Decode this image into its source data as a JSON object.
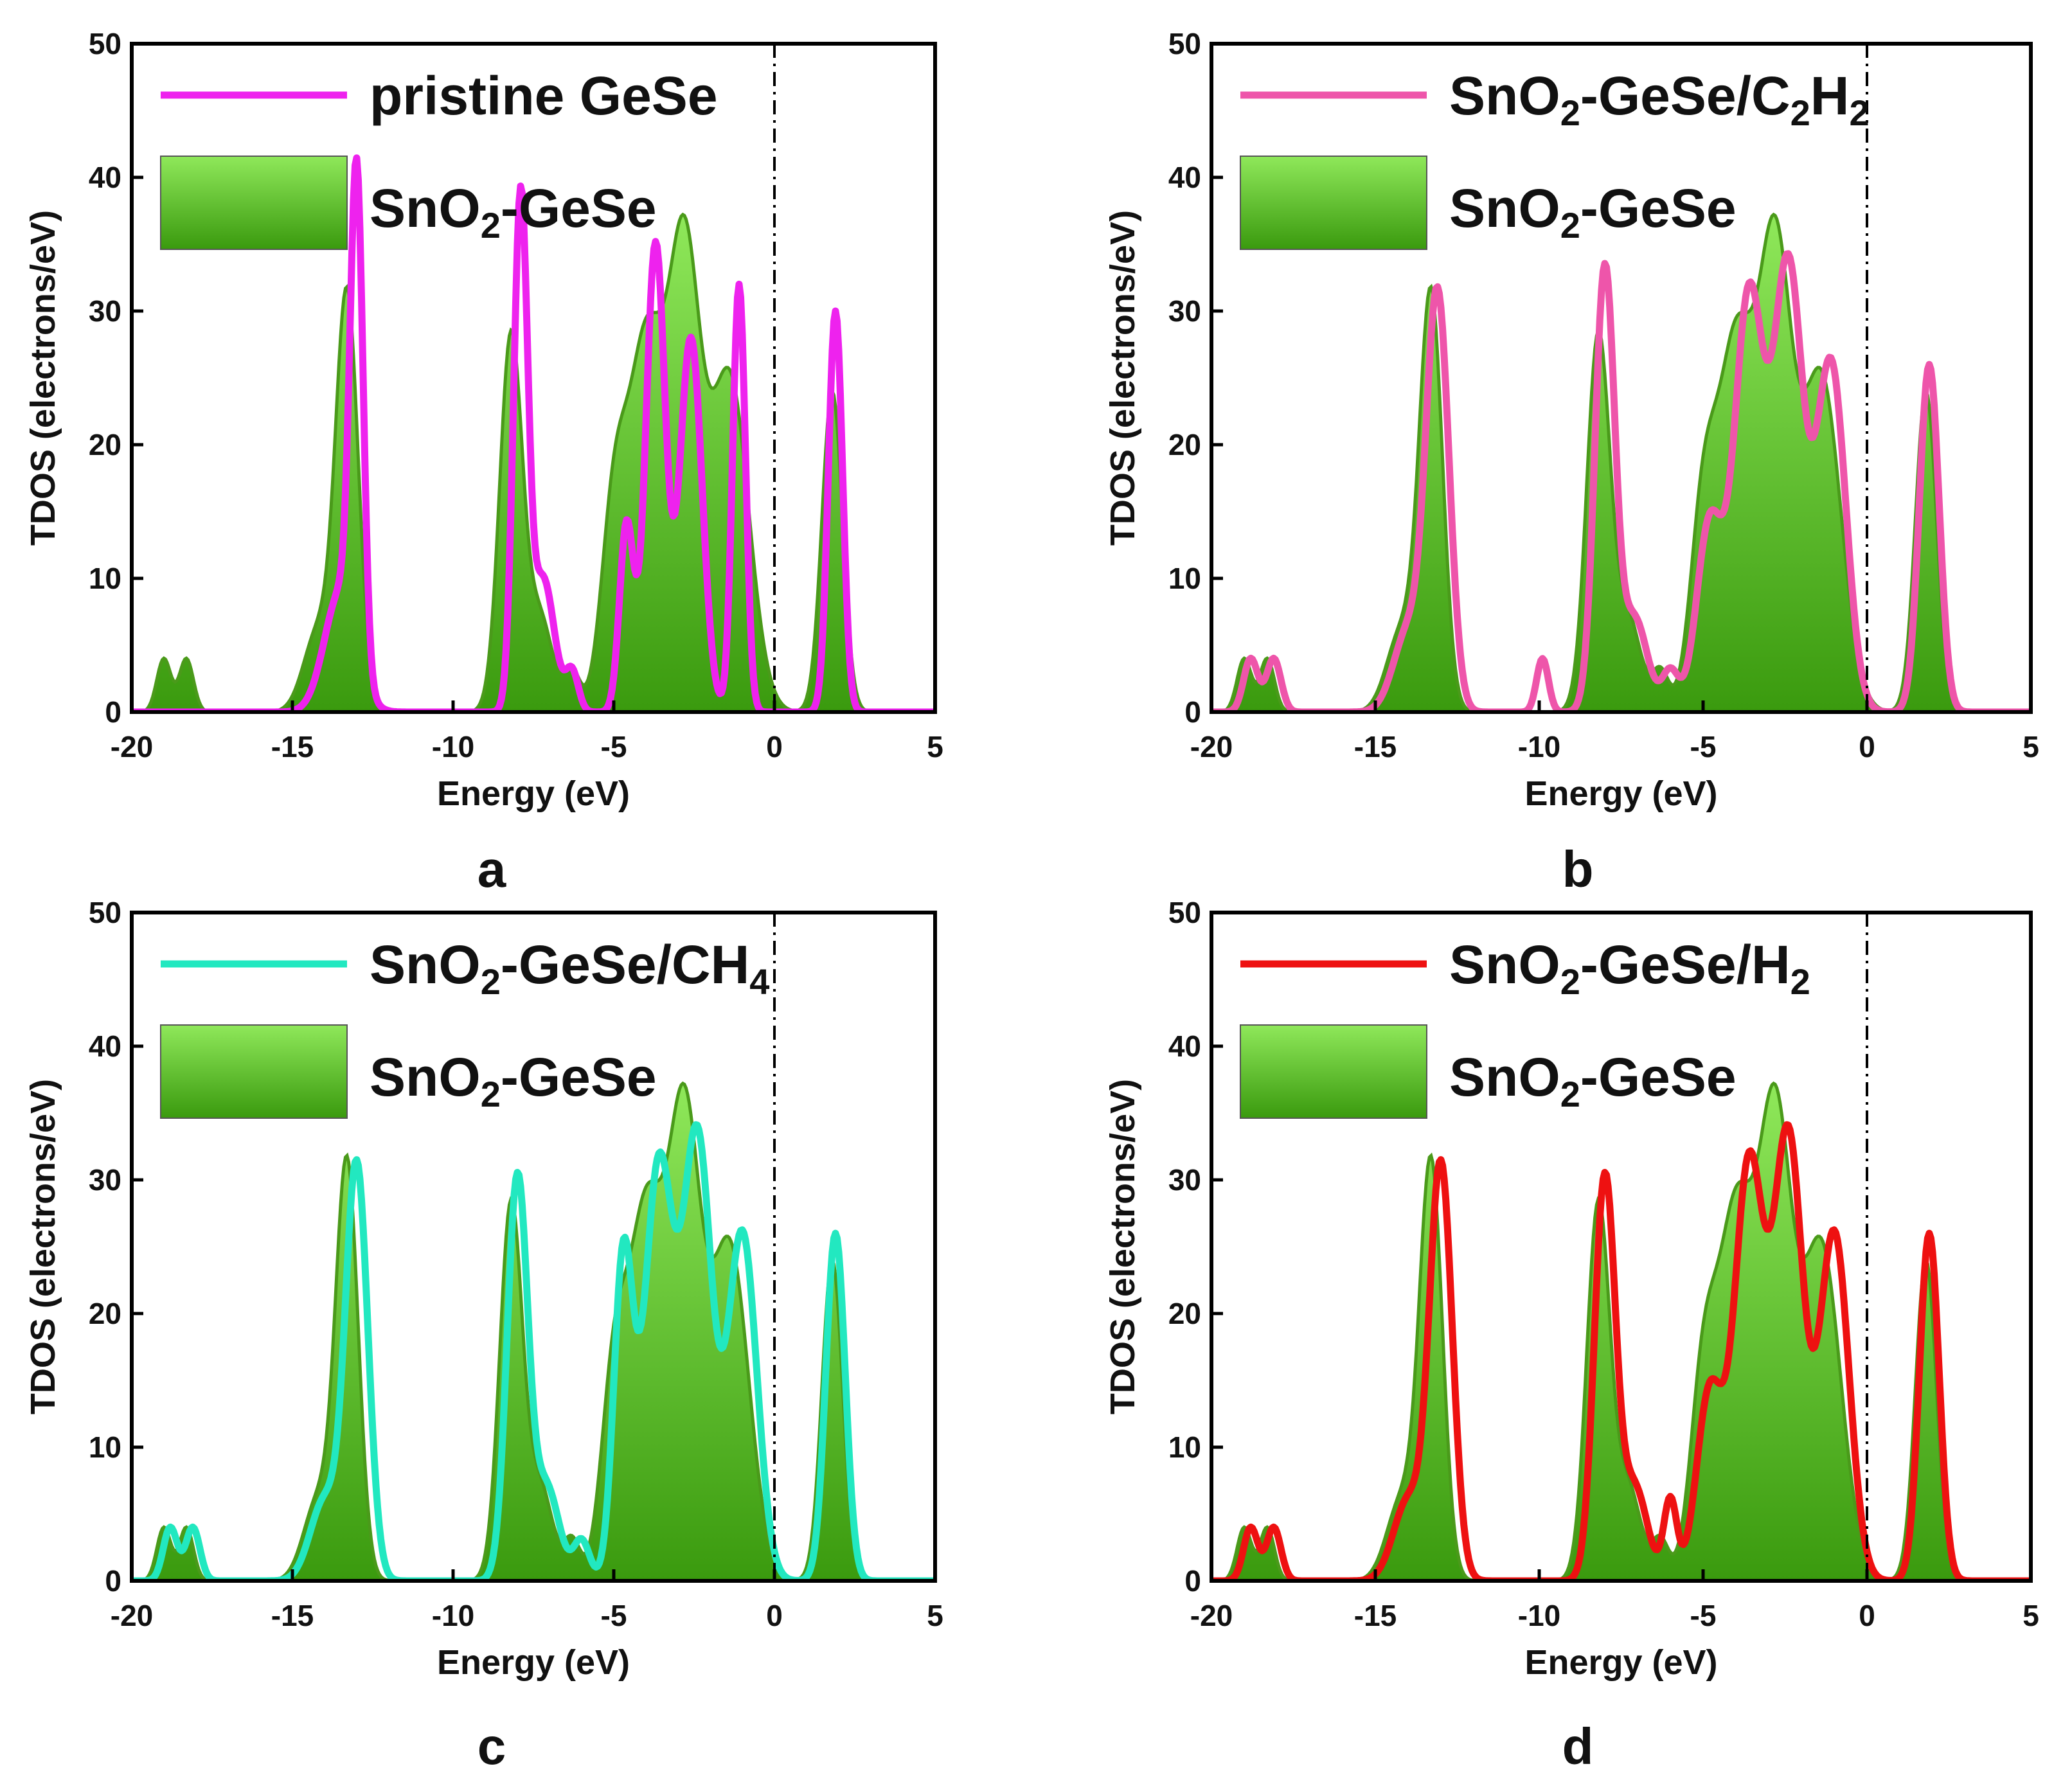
{
  "colors": {
    "fill_top": "#8fe85a",
    "fill_bottom": "#3a9a0e",
    "fill_stroke": "#4a9a1a",
    "axis": "#000000"
  },
  "chart_data": [
    {
      "type": "area",
      "panel_label": "a",
      "xlabel": "Energy (eV)",
      "ylabel": "TDOS (electrons/eV)",
      "xlim": [
        -20,
        5
      ],
      "ylim": [
        0,
        50
      ],
      "xticks": [
        -20,
        -15,
        -10,
        -5,
        0,
        5
      ],
      "yticks": [
        0,
        10,
        20,
        30,
        40,
        50
      ],
      "xtick_labels": [
        "-20",
        "-15",
        "-10",
        "-5",
        "0",
        "5"
      ],
      "ytick_labels": [
        "0",
        "10",
        "20",
        "30",
        "40",
        "50"
      ],
      "fermi_level": 0,
      "series": [
        {
          "name": "SnO₂-GeSe",
          "legend_parts": [
            [
              "SnO",
              false
            ],
            [
              "2",
              true
            ],
            [
              "-GeSe",
              false
            ]
          ],
          "style": "fill",
          "color": "#3a9a0e",
          "peaks": [
            [
              -19.0,
              4,
              0.22
            ],
            [
              -18.3,
              4,
              0.22
            ],
            [
              -14.2,
              6,
              0.45
            ],
            [
              -13.3,
              31,
              0.35
            ],
            [
              -8.2,
              28,
              0.35
            ],
            [
              -7.3,
              7,
              0.4
            ],
            [
              -6.3,
              3,
              0.25
            ],
            [
              -5.0,
              14,
              0.4
            ],
            [
              -4.0,
              27,
              0.55
            ],
            [
              -2.8,
              33,
              0.5
            ],
            [
              -1.4,
              25,
              0.6
            ],
            [
              1.8,
              24,
              0.32
            ]
          ]
        },
        {
          "name": "pristine GeSe",
          "legend_parts": [
            [
              "pristine GeSe",
              false
            ]
          ],
          "style": "line",
          "color": "#ee22ee",
          "peaks": [
            [
              -13.5,
              9,
              0.5
            ],
            [
              -13.0,
              36,
              0.2
            ],
            [
              -7.9,
              38,
              0.22
            ],
            [
              -7.2,
              10,
              0.35
            ],
            [
              -6.3,
              3,
              0.2
            ],
            [
              -4.6,
              14,
              0.22
            ],
            [
              -3.7,
              35,
              0.3
            ],
            [
              -2.6,
              28,
              0.35
            ],
            [
              -1.1,
              32,
              0.2
            ],
            [
              1.9,
              30,
              0.22
            ]
          ]
        }
      ]
    },
    {
      "type": "area",
      "panel_label": "b",
      "xlabel": "Energy (eV)",
      "ylabel": "TDOS (electrons/eV)",
      "xlim": [
        -20,
        5
      ],
      "ylim": [
        0,
        50
      ],
      "xticks": [
        -20,
        -15,
        -10,
        -5,
        0,
        5
      ],
      "yticks": [
        0,
        10,
        20,
        30,
        40,
        50
      ],
      "xtick_labels": [
        "-20",
        "-15",
        "-10",
        "-5",
        "0",
        "5"
      ],
      "ytick_labels": [
        "0",
        "10",
        "20",
        "30",
        "40",
        "50"
      ],
      "fermi_level": 0,
      "series": [
        {
          "name": "SnO₂-GeSe",
          "legend_parts": [
            [
              "SnO",
              false
            ],
            [
              "2",
              true
            ],
            [
              "-GeSe",
              false
            ]
          ],
          "style": "fill",
          "color": "#3a9a0e",
          "peaks": [
            [
              -19.0,
              4,
              0.22
            ],
            [
              -18.3,
              4,
              0.22
            ],
            [
              -14.2,
              6,
              0.45
            ],
            [
              -13.3,
              31,
              0.35
            ],
            [
              -8.2,
              28,
              0.35
            ],
            [
              -7.3,
              7,
              0.4
            ],
            [
              -6.3,
              3,
              0.25
            ],
            [
              -5.0,
              14,
              0.4
            ],
            [
              -4.0,
              27,
              0.55
            ],
            [
              -2.8,
              33,
              0.5
            ],
            [
              -1.4,
              25,
              0.6
            ],
            [
              1.8,
              24,
              0.32
            ]
          ]
        },
        {
          "name": "SnO₂-GeSe/C₂H₂",
          "legend_parts": [
            [
              "SnO",
              false
            ],
            [
              "2",
              true
            ],
            [
              "-GeSe/C",
              false
            ],
            [
              "2",
              true
            ],
            [
              "H",
              false
            ],
            [
              "2",
              true
            ]
          ],
          "style": "line",
          "color": "#ee55aa",
          "peaks": [
            [
              -18.8,
              4,
              0.22
            ],
            [
              -18.1,
              4,
              0.22
            ],
            [
              -14.0,
              6,
              0.45
            ],
            [
              -13.1,
              31,
              0.35
            ],
            [
              -9.9,
              4,
              0.18
            ],
            [
              -8.0,
              33,
              0.3
            ],
            [
              -7.1,
              7,
              0.4
            ],
            [
              -6.0,
              3,
              0.25
            ],
            [
              -4.8,
              14,
              0.4
            ],
            [
              -3.6,
              31,
              0.45
            ],
            [
              -2.4,
              33,
              0.45
            ],
            [
              -1.1,
              26,
              0.45
            ],
            [
              1.9,
              26,
              0.3
            ]
          ]
        }
      ]
    },
    {
      "type": "area",
      "panel_label": "c",
      "xlabel": "Energy (eV)",
      "ylabel": "TDOS (electrons/eV)",
      "xlim": [
        -20,
        5
      ],
      "ylim": [
        0,
        50
      ],
      "xticks": [
        -20,
        -15,
        -10,
        -5,
        0,
        5
      ],
      "yticks": [
        0,
        10,
        20,
        30,
        40,
        50
      ],
      "xtick_labels": [
        "-20",
        "-15",
        "-10",
        "-5",
        "0",
        "5"
      ],
      "ytick_labels": [
        "0",
        "10",
        "20",
        "30",
        "40",
        "50"
      ],
      "fermi_level": 0,
      "series": [
        {
          "name": "SnO₂-GeSe",
          "legend_parts": [
            [
              "SnO",
              false
            ],
            [
              "2",
              true
            ],
            [
              "-GeSe",
              false
            ]
          ],
          "style": "fill",
          "color": "#3a9a0e",
          "peaks": [
            [
              -19.0,
              4,
              0.22
            ],
            [
              -18.3,
              4,
              0.22
            ],
            [
              -14.2,
              6,
              0.45
            ],
            [
              -13.3,
              31,
              0.35
            ],
            [
              -8.2,
              28,
              0.35
            ],
            [
              -7.3,
              7,
              0.4
            ],
            [
              -6.3,
              3,
              0.25
            ],
            [
              -5.0,
              14,
              0.4
            ],
            [
              -4.0,
              27,
              0.55
            ],
            [
              -2.8,
              33,
              0.5
            ],
            [
              -1.4,
              25,
              0.6
            ],
            [
              1.8,
              24,
              0.32
            ]
          ]
        },
        {
          "name": "SnO₂-GeSe/CH₄",
          "legend_parts": [
            [
              "SnO",
              false
            ],
            [
              "2",
              true
            ],
            [
              "-GeSe/CH",
              false
            ],
            [
              "4",
              true
            ]
          ],
          "style": "line",
          "color": "#22e8c0",
          "peaks": [
            [
              -18.8,
              4,
              0.22
            ],
            [
              -18.1,
              4,
              0.22
            ],
            [
              -14.0,
              6,
              0.45
            ],
            [
              -13.0,
              31,
              0.35
            ],
            [
              -8.0,
              30,
              0.32
            ],
            [
              -7.1,
              7,
              0.4
            ],
            [
              -6.0,
              3,
              0.25
            ],
            [
              -4.7,
              24,
              0.3
            ],
            [
              -3.6,
              31,
              0.45
            ],
            [
              -2.4,
              33,
              0.45
            ],
            [
              -1.0,
              26,
              0.45
            ],
            [
              1.9,
              26,
              0.3
            ]
          ]
        }
      ]
    },
    {
      "type": "area",
      "panel_label": "d",
      "xlabel": "Energy (eV)",
      "ylabel": "TDOS (electrons/eV)",
      "xlim": [
        -20,
        5
      ],
      "ylim": [
        0,
        50
      ],
      "xticks": [
        -20,
        -15,
        -10,
        -5,
        0,
        5
      ],
      "yticks": [
        0,
        10,
        20,
        30,
        40,
        50
      ],
      "xtick_labels": [
        "-20",
        "-15",
        "-10",
        "-5",
        "0",
        "5"
      ],
      "ytick_labels": [
        "0",
        "10",
        "20",
        "30",
        "40",
        "50"
      ],
      "fermi_level": 0,
      "series": [
        {
          "name": "SnO₂-GeSe",
          "legend_parts": [
            [
              "SnO",
              false
            ],
            [
              "2",
              true
            ],
            [
              "-GeSe",
              false
            ]
          ],
          "style": "fill",
          "color": "#3a9a0e",
          "peaks": [
            [
              -19.0,
              4,
              0.22
            ],
            [
              -18.3,
              4,
              0.22
            ],
            [
              -14.2,
              6,
              0.45
            ],
            [
              -13.3,
              31,
              0.35
            ],
            [
              -8.2,
              28,
              0.35
            ],
            [
              -7.3,
              7,
              0.4
            ],
            [
              -6.3,
              3,
              0.25
            ],
            [
              -5.0,
              14,
              0.4
            ],
            [
              -4.0,
              27,
              0.55
            ],
            [
              -2.8,
              33,
              0.5
            ],
            [
              -1.4,
              25,
              0.6
            ],
            [
              1.8,
              24,
              0.32
            ]
          ]
        },
        {
          "name": "SnO₂-GeSe/H₂",
          "legend_parts": [
            [
              "SnO",
              false
            ],
            [
              "2",
              true
            ],
            [
              "-GeSe/H",
              false
            ],
            [
              "2",
              true
            ]
          ],
          "style": "line",
          "color": "#ee1111",
          "peaks": [
            [
              -18.8,
              4,
              0.22
            ],
            [
              -18.1,
              4,
              0.22
            ],
            [
              -14.0,
              6,
              0.45
            ],
            [
              -13.0,
              31,
              0.35
            ],
            [
              -8.0,
              30,
              0.32
            ],
            [
              -7.1,
              7,
              0.4
            ],
            [
              -6.0,
              6,
              0.2
            ],
            [
              -4.8,
              14,
              0.4
            ],
            [
              -3.6,
              31,
              0.45
            ],
            [
              -2.4,
              33,
              0.45
            ],
            [
              -1.0,
              26,
              0.45
            ],
            [
              1.9,
              26,
              0.3
            ]
          ]
        }
      ]
    }
  ]
}
